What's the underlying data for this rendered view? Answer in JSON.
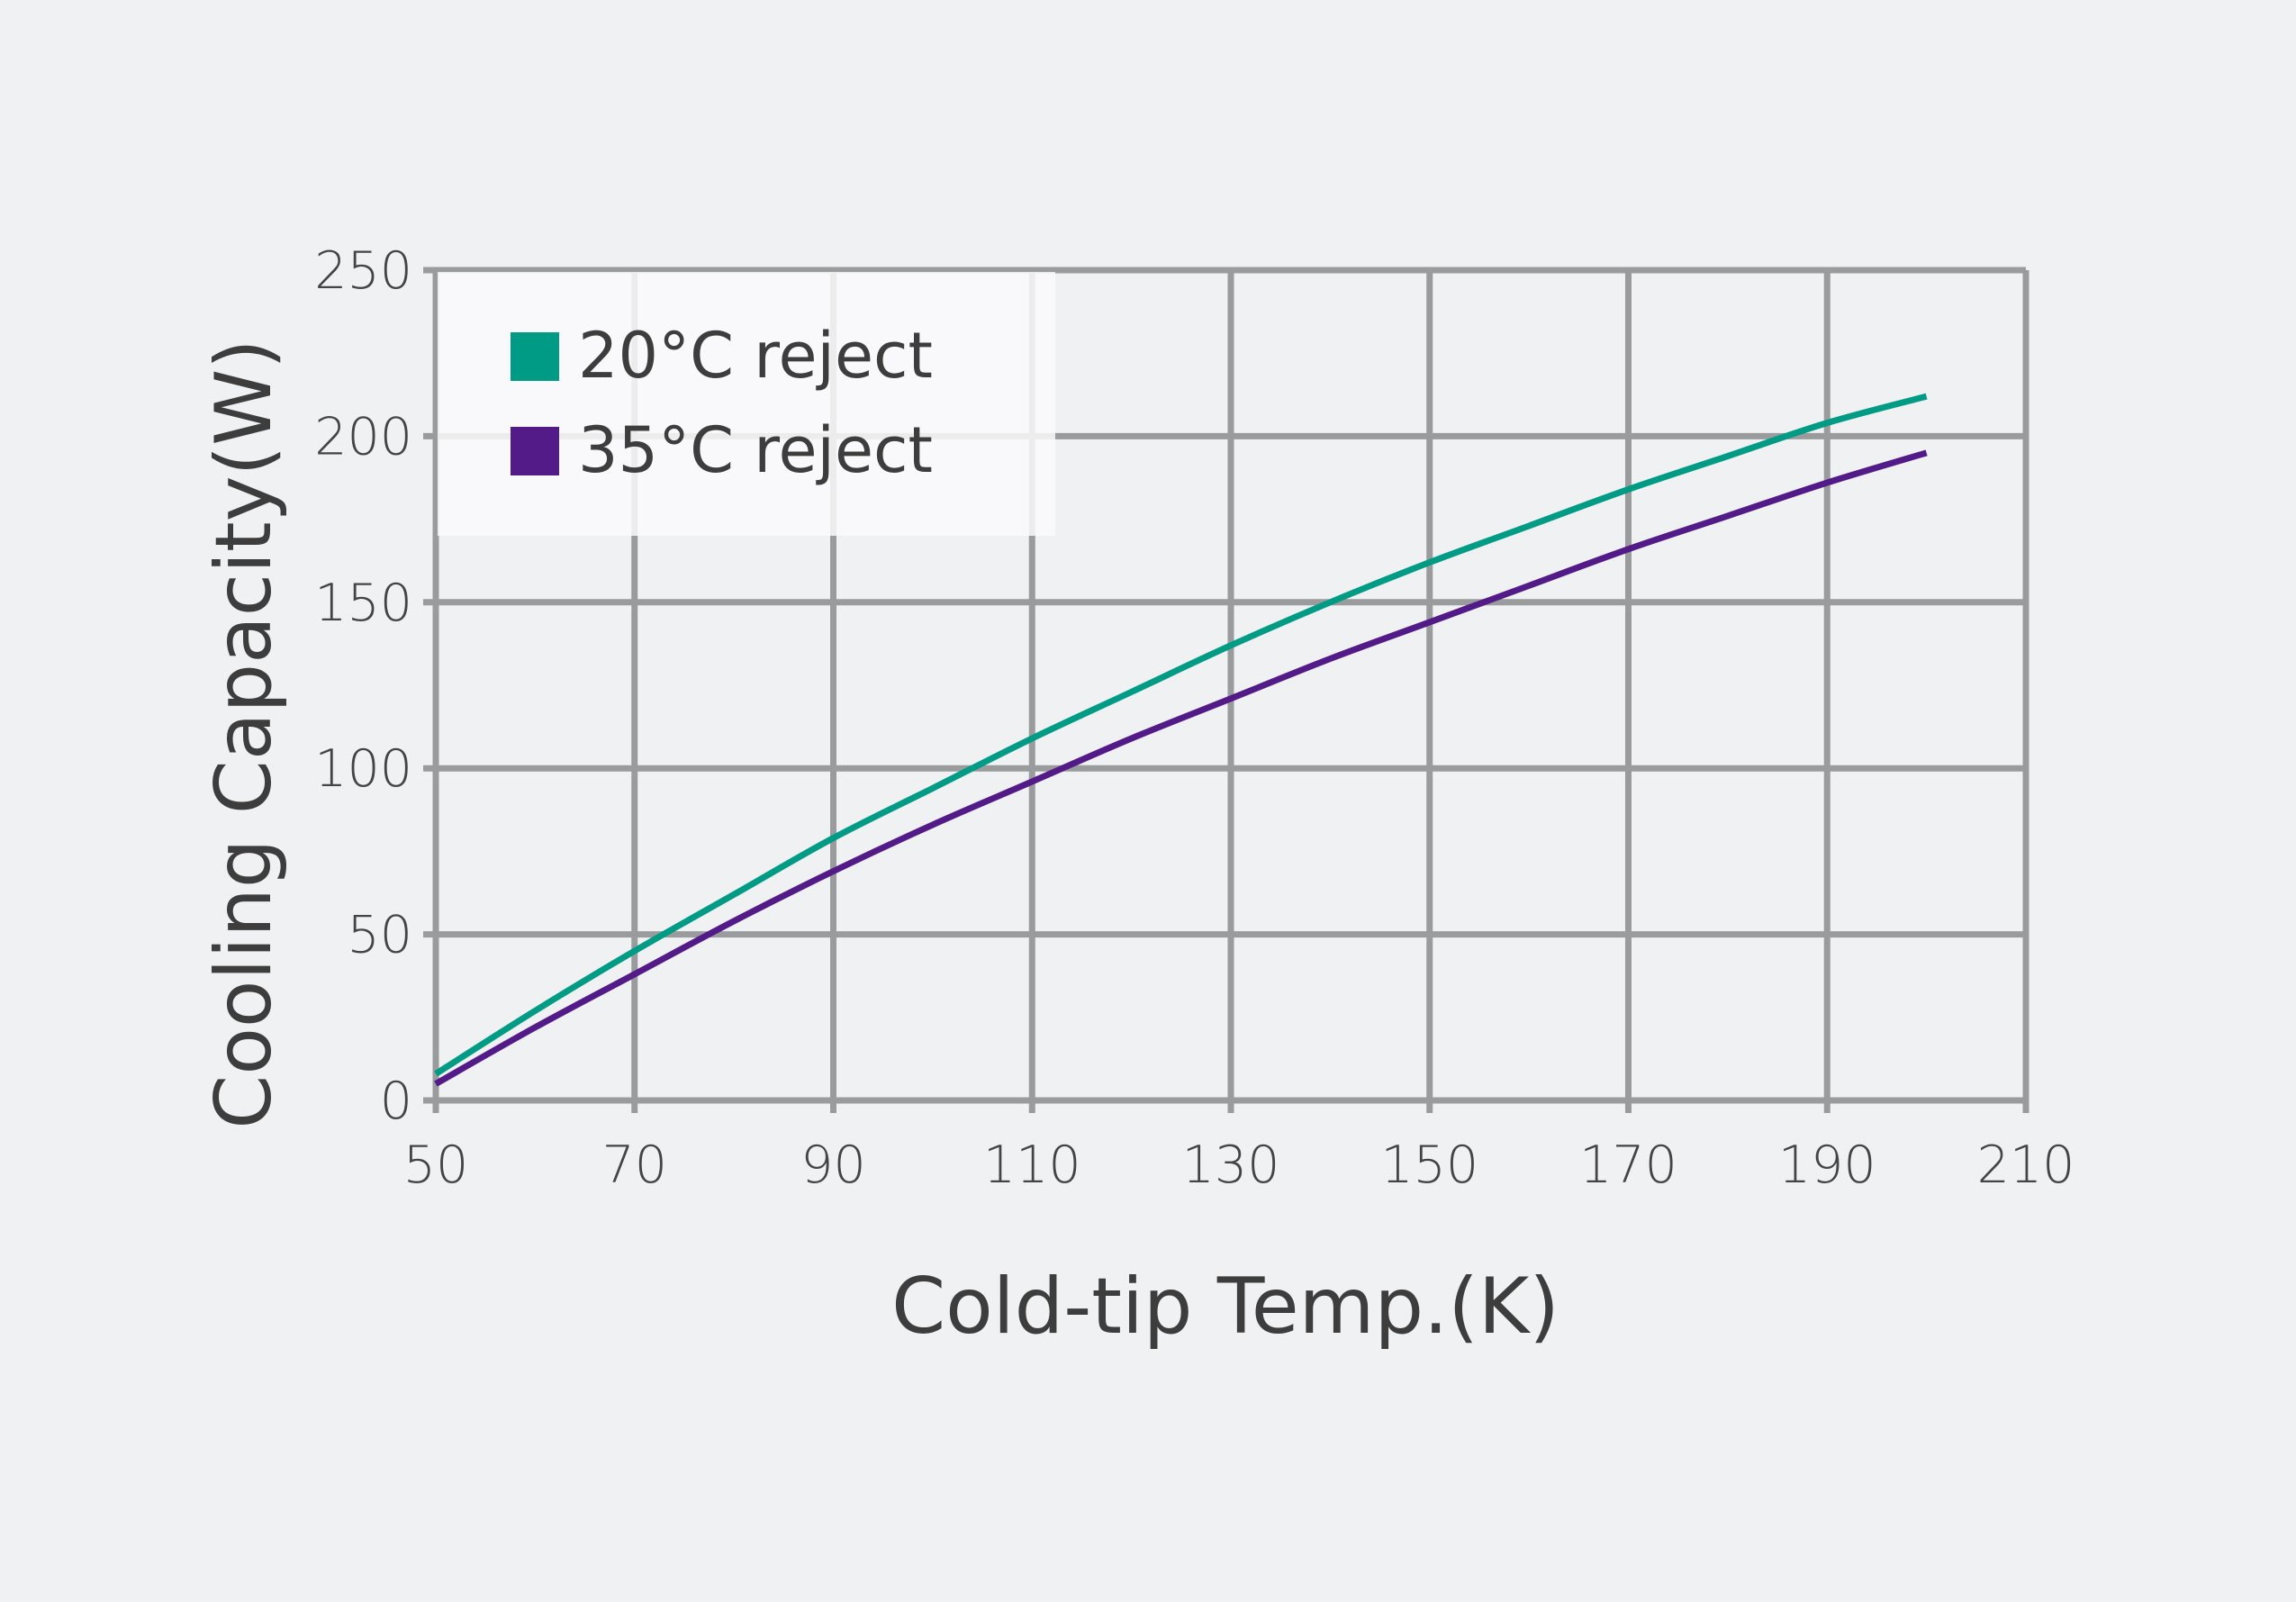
{
  "chart_data": {
    "type": "line",
    "xlabel": "Cold-tip Temp.(K)",
    "ylabel": "Cooling Capacity(W)",
    "xlim": [
      50,
      210
    ],
    "ylim": [
      0,
      250
    ],
    "xticks": [
      "50",
      "70",
      "90",
      "110",
      "130",
      "150",
      "170",
      "190",
      "210"
    ],
    "yticks": [
      "0",
      "50",
      "100",
      "150",
      "200",
      "250"
    ],
    "grid": true,
    "legend_position": "top-left",
    "series": [
      {
        "name": "20°C reject",
        "color": "#009b85",
        "x": [
          50,
          60,
          70,
          80,
          90,
          100,
          110,
          120,
          130,
          140,
          150,
          160,
          170,
          180,
          190,
          200
        ],
        "y": [
          8,
          27,
          45,
          62,
          79,
          94,
          109,
          123,
          137,
          150,
          162,
          173,
          184,
          194,
          204,
          212
        ]
      },
      {
        "name": "35°C reject",
        "color": "#521b88",
        "x": [
          50,
          60,
          70,
          80,
          90,
          100,
          110,
          120,
          130,
          140,
          150,
          160,
          170,
          180,
          190,
          200
        ],
        "y": [
          5,
          22,
          38,
          54,
          69,
          83,
          96,
          109,
          121,
          133,
          144,
          155,
          166,
          176,
          186,
          195
        ]
      }
    ]
  }
}
